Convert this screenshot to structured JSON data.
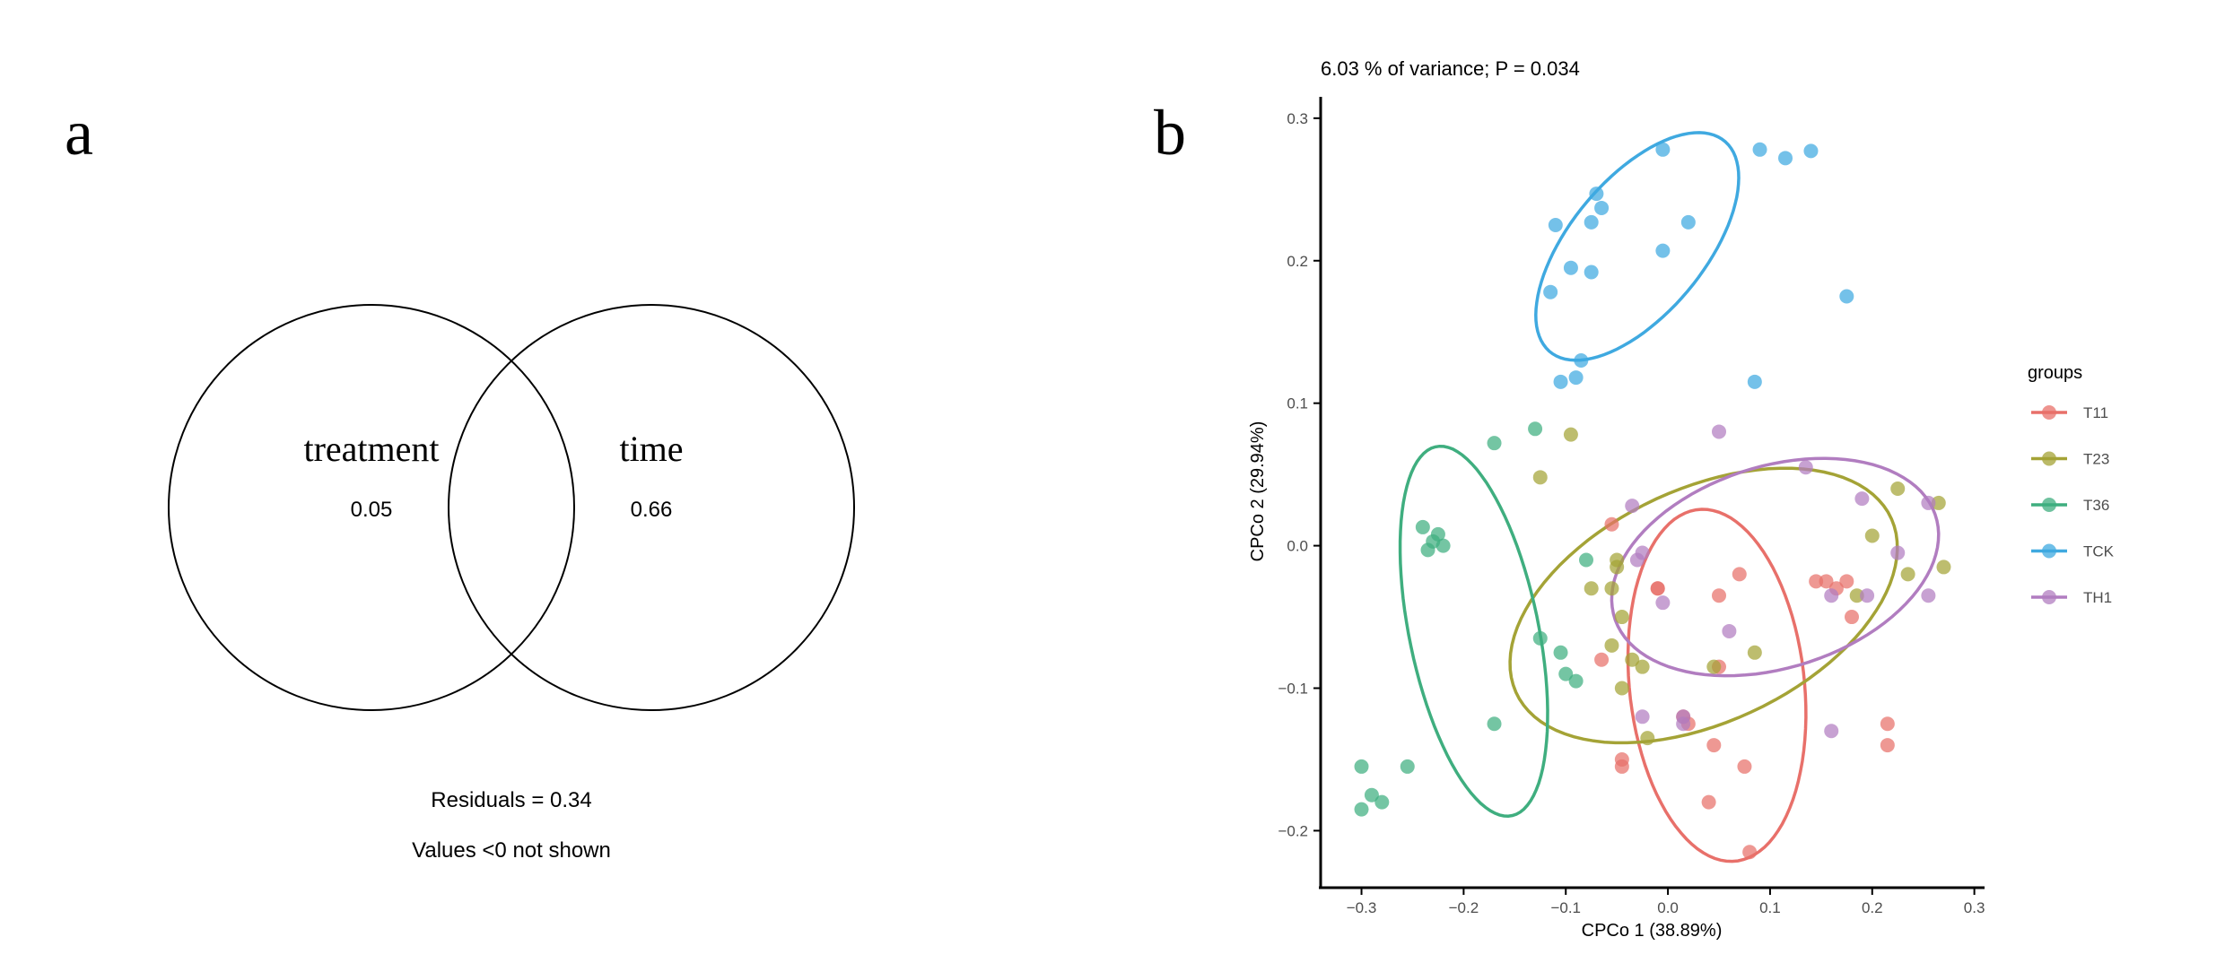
{
  "panel_a": {
    "letter": "a",
    "left_label": "treatment",
    "left_value": "0.05",
    "right_label": "time",
    "right_value": "0.66",
    "residuals": "Residuals = 0.34",
    "note": "Values <0 not shown"
  },
  "panel_b": {
    "letter": "b"
  },
  "chart_data": [
    {
      "type": "venn",
      "sets": [
        "treatment",
        "time"
      ],
      "values": {
        "treatment": 0.05,
        "time": 0.66
      },
      "residuals": 0.34,
      "note": "Values <0 not shown"
    },
    {
      "type": "scatter",
      "title": "6.03 % of variance; P = 0.034",
      "xlabel": "CPCo 1 (38.89%)",
      "ylabel": "CPCo 2 (29.94%)",
      "xlim": [
        -0.34,
        0.31
      ],
      "ylim": [
        -0.24,
        0.315
      ],
      "xticks": [
        -0.3,
        -0.2,
        -0.1,
        0.0,
        0.1,
        0.2,
        0.3
      ],
      "xtick_labels": [
        "−0.3",
        "−0.2",
        "−0.1",
        "0.0",
        "0.1",
        "0.2",
        "0.3"
      ],
      "yticks": [
        -0.2,
        -0.1,
        0.0,
        0.1,
        0.2,
        0.3
      ],
      "ytick_labels": [
        "−0.2",
        "−0.1",
        "0.0",
        "0.1",
        "0.2",
        "0.3"
      ],
      "legend": {
        "title": "groups",
        "position": "right"
      },
      "series": [
        {
          "name": "T11",
          "color": "#e8706a",
          "points": [
            [
              0.07,
              -0.02
            ],
            [
              0.05,
              -0.035
            ],
            [
              -0.01,
              -0.03
            ],
            [
              -0.01,
              -0.03
            ],
            [
              -0.055,
              0.015
            ],
            [
              0.145,
              -0.025
            ],
            [
              0.155,
              -0.025
            ],
            [
              0.165,
              -0.03
            ],
            [
              0.175,
              -0.025
            ],
            [
              0.18,
              -0.05
            ],
            [
              0.05,
              -0.085
            ],
            [
              -0.065,
              -0.08
            ],
            [
              0.02,
              -0.125
            ],
            [
              0.015,
              -0.12
            ],
            [
              0.045,
              -0.14
            ],
            [
              0.075,
              -0.155
            ],
            [
              0.04,
              -0.18
            ],
            [
              0.215,
              -0.125
            ],
            [
              0.215,
              -0.14
            ],
            [
              -0.045,
              -0.15
            ],
            [
              -0.045,
              -0.155
            ],
            [
              0.08,
              -0.215
            ]
          ],
          "ellipse": {
            "cx": 0.048,
            "cy": -0.098,
            "rx": 0.125,
            "ry": 0.085,
            "angle_deg": -78
          }
        },
        {
          "name": "T23",
          "color": "#a4a336",
          "points": [
            [
              -0.095,
              0.078
            ],
            [
              -0.125,
              0.048
            ],
            [
              -0.05,
              -0.01
            ],
            [
              -0.05,
              -0.015
            ],
            [
              -0.055,
              -0.03
            ],
            [
              -0.075,
              -0.03
            ],
            [
              -0.045,
              -0.05
            ],
            [
              -0.055,
              -0.07
            ],
            [
              -0.035,
              -0.08
            ],
            [
              -0.025,
              -0.085
            ],
            [
              0.085,
              -0.075
            ],
            [
              0.045,
              -0.085
            ],
            [
              -0.045,
              -0.1
            ],
            [
              -0.02,
              -0.135
            ],
            [
              0.2,
              0.007
            ],
            [
              0.185,
              -0.035
            ],
            [
              0.225,
              0.04
            ],
            [
              0.235,
              -0.02
            ],
            [
              0.265,
              0.03
            ],
            [
              0.27,
              -0.015
            ]
          ],
          "ellipse": {
            "cx": 0.035,
            "cy": -0.042,
            "rx": 0.195,
            "ry": 0.085,
            "angle_deg": 15
          }
        },
        {
          "name": "T36",
          "color": "#3fae7f",
          "points": [
            [
              -0.17,
              0.072
            ],
            [
              -0.13,
              0.082
            ],
            [
              -0.24,
              0.013
            ],
            [
              -0.225,
              0.008
            ],
            [
              -0.23,
              0.003
            ],
            [
              -0.22,
              0.0
            ],
            [
              -0.235,
              -0.003
            ],
            [
              -0.125,
              -0.065
            ],
            [
              -0.105,
              -0.075
            ],
            [
              -0.1,
              -0.09
            ],
            [
              -0.09,
              -0.095
            ],
            [
              -0.08,
              -0.01
            ],
            [
              -0.17,
              -0.125
            ],
            [
              -0.3,
              -0.155
            ],
            [
              -0.3,
              -0.185
            ],
            [
              -0.29,
              -0.175
            ],
            [
              -0.28,
              -0.18
            ],
            [
              -0.255,
              -0.155
            ]
          ],
          "ellipse": {
            "cx": -0.19,
            "cy": -0.06,
            "rx": 0.135,
            "ry": 0.062,
            "angle_deg": -72
          }
        },
        {
          "name": "TCK",
          "color": "#3fa9e0",
          "points": [
            [
              -0.005,
              0.278
            ],
            [
              0.09,
              0.278
            ],
            [
              0.115,
              0.272
            ],
            [
              0.14,
              0.277
            ],
            [
              -0.07,
              0.247
            ],
            [
              -0.065,
              0.237
            ],
            [
              -0.075,
              0.227
            ],
            [
              -0.11,
              0.225
            ],
            [
              0.02,
              0.227
            ],
            [
              -0.005,
              0.207
            ],
            [
              -0.095,
              0.195
            ],
            [
              -0.075,
              0.192
            ],
            [
              -0.115,
              0.178
            ],
            [
              0.175,
              0.175
            ],
            [
              -0.085,
              0.13
            ],
            [
              -0.09,
              0.118
            ],
            [
              -0.105,
              0.115
            ],
            [
              0.085,
              0.115
            ]
          ],
          "ellipse": {
            "cx": -0.03,
            "cy": 0.21,
            "rx": 0.115,
            "ry": 0.055,
            "angle_deg": 35
          }
        },
        {
          "name": "TH1",
          "color": "#b17dc0",
          "points": [
            [
              0.05,
              0.08
            ],
            [
              0.135,
              0.055
            ],
            [
              -0.035,
              0.028
            ],
            [
              0.19,
              0.033
            ],
            [
              0.255,
              0.03
            ],
            [
              -0.025,
              -0.005
            ],
            [
              -0.03,
              -0.01
            ],
            [
              -0.005,
              -0.04
            ],
            [
              0.06,
              -0.06
            ],
            [
              0.16,
              -0.035
            ],
            [
              0.195,
              -0.035
            ],
            [
              0.225,
              -0.005
            ],
            [
              0.255,
              -0.035
            ],
            [
              -0.025,
              -0.12
            ],
            [
              0.015,
              -0.12
            ],
            [
              0.015,
              -0.125
            ],
            [
              0.16,
              -0.13
            ]
          ],
          "ellipse": {
            "cx": 0.105,
            "cy": -0.015,
            "rx": 0.162,
            "ry": 0.072,
            "angle_deg": 10
          }
        }
      ]
    }
  ]
}
